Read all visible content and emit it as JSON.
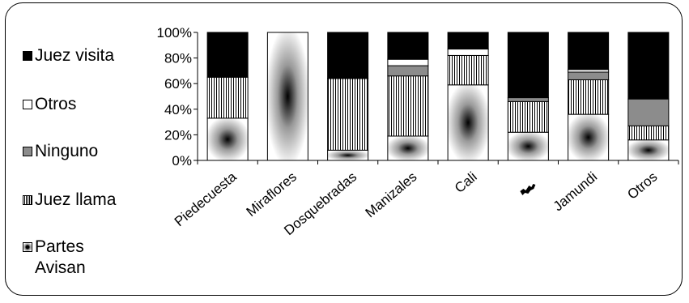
{
  "chart_data": {
    "type": "bar",
    "stacked": true,
    "percent": true,
    "categories": [
      "Piedecuesta",
      "Miraflores",
      "Dosquebradas",
      "Manizales",
      "Cali",
      "",
      "Jamundi",
      "Otros"
    ],
    "series": [
      {
        "name": "Partes Avisan",
        "values": [
          33,
          0,
          8,
          19,
          59,
          22,
          36,
          16
        ]
      },
      {
        "name": "Juez llama",
        "values": [
          32,
          0,
          56,
          47,
          23,
          24,
          27,
          11
        ]
      },
      {
        "name": "Ninguno",
        "values": [
          0,
          0,
          0,
          8,
          0,
          3,
          6,
          21
        ]
      },
      {
        "name": "Otros",
        "values": [
          0,
          100,
          0,
          5,
          5,
          0,
          2,
          0
        ]
      },
      {
        "name": "Juez visita",
        "values": [
          35,
          0,
          36,
          21,
          13,
          51,
          29,
          52
        ]
      }
    ],
    "ylim": [
      0,
      100
    ],
    "yticks": [
      "0%",
      "20%",
      "40%",
      "60%",
      "80%",
      "100%"
    ],
    "legend_position": "left",
    "colors": {
      "Juez visita": "#000000",
      "Otros": "#ffffff",
      "Ninguno": "#8c8c8c",
      "Juez llama": "#ffffff",
      "Partes Avisan": "#ffffff"
    }
  }
}
